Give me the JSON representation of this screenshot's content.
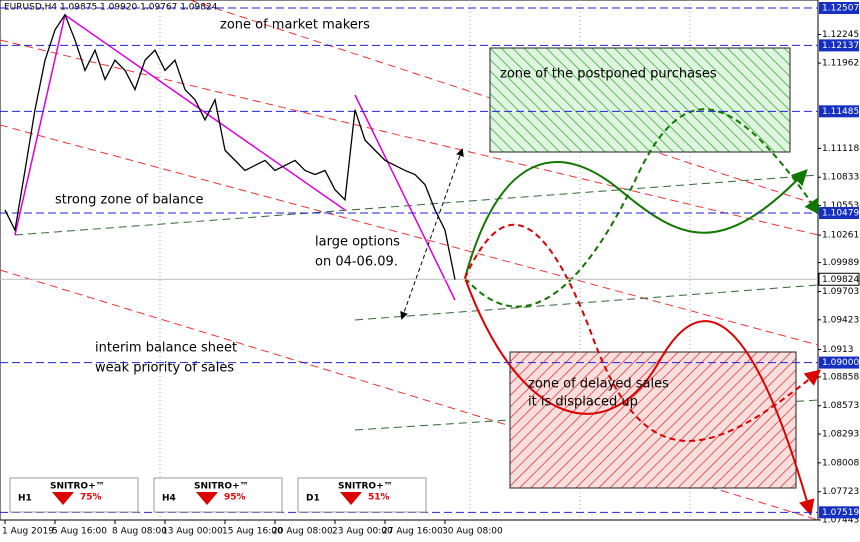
{
  "chart_data": {
    "type": "line",
    "header": "EURUSD,H4  1.09875 1.09920 1.09767 1.09824",
    "categories": [
      "1 Aug 2019",
      null,
      null,
      null,
      null,
      "5 Aug 16:00",
      null,
      null,
      null,
      null,
      null,
      "8 Aug 08:00",
      null,
      null,
      null,
      null,
      "13 Aug 00:00",
      null,
      null,
      null,
      null,
      null,
      "15 Aug 16:00",
      null,
      null,
      null,
      null,
      "20 Aug 08:00",
      null,
      null,
      null,
      null,
      null,
      "23 Aug 00:00",
      null,
      null,
      null,
      null,
      "27 Aug 16:00",
      null,
      null,
      null,
      null,
      null,
      "30 Aug 08:00",
      null
    ],
    "series": [
      {
        "name": "EURUSD,H4",
        "color": "#000000",
        "values": [
          1.1051,
          1.1031,
          1.109,
          1.115,
          1.1199,
          1.1229,
          1.1244,
          1.1219,
          1.1189,
          1.1209,
          1.118,
          1.1199,
          1.1189,
          1.117,
          1.1199,
          1.1209,
          1.1189,
          1.1199,
          1.117,
          1.116,
          1.114,
          1.116,
          1.111,
          1.11,
          1.109,
          1.1095,
          1.11,
          1.109,
          1.1095,
          1.11,
          1.109,
          1.1086,
          1.109,
          1.1071,
          1.1061,
          1.115,
          1.112,
          1.111,
          1.11,
          1.1095,
          1.109,
          1.1086,
          1.1076,
          1.1051,
          1.1031,
          1.0982
        ]
      }
    ],
    "ylim": [
      1.07443,
      1.12586
    ],
    "yticks": [
      1.12245,
      1.11962,
      1.11118,
      1.10833,
      1.10553,
      1.10261,
      1.09989,
      1.09703,
      1.09423,
      1.0913,
      1.08858,
      1.08573,
      1.08293,
      1.08008,
      1.07723,
      1.07443
    ],
    "levels": [
      1.12507,
      1.12137,
      1.11485,
      1.10479,
      {
        "value": 1.09,
        "label": "1.09000"
      },
      1.07519
    ],
    "last_price": 1.09824,
    "annotations": [
      "zone of market makers",
      "strong zone of balance",
      "large options",
      "on 04-06.09.",
      "interim balance sheet",
      "weak priority of sales",
      "zone of the postponed purchases",
      "zone of delayed sales",
      "it is displaced up"
    ],
    "signals": [
      {
        "timeframe": "H1",
        "brand": "SNITRO+™",
        "value": "75%"
      },
      {
        "timeframe": "H4",
        "brand": "SNITRO+™",
        "value": "95%"
      },
      {
        "timeframe": "D1",
        "brand": "SNITRO+™",
        "value": "51%"
      }
    ]
  }
}
